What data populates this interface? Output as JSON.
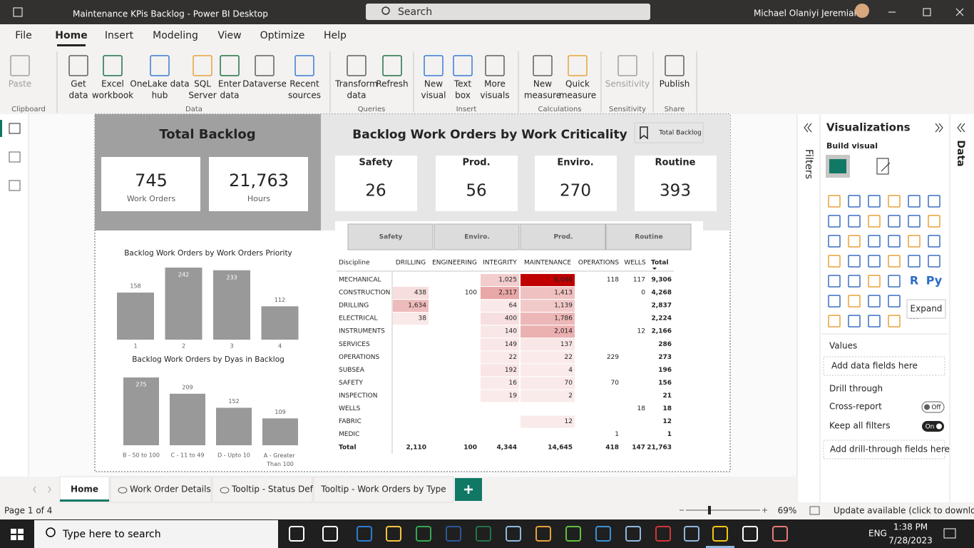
{
  "window": {
    "title": "Maintenance KPis Backlog - Power BI Desktop",
    "search": "Search",
    "user": "Michael Olaniyi Jeremiah"
  },
  "menu": [
    "File",
    "Home",
    "Insert",
    "Modeling",
    "View",
    "Optimize",
    "Help"
  ],
  "ribbon": {
    "buttons": [
      {
        "lines": [
          "Paste"
        ]
      },
      {
        "lines": [
          "Get",
          "data"
        ]
      },
      {
        "lines": [
          "Excel",
          "workbook"
        ]
      },
      {
        "lines": [
          "OneLake data",
          "hub"
        ]
      },
      {
        "lines": [
          "SQL",
          "Server"
        ]
      },
      {
        "lines": [
          "Enter",
          "data"
        ]
      },
      {
        "lines": [
          "Dataverse"
        ]
      },
      {
        "lines": [
          "Recent",
          "sources"
        ]
      },
      {
        "lines": [
          "Transform",
          "data"
        ]
      },
      {
        "lines": [
          "Refresh"
        ]
      },
      {
        "lines": [
          "New",
          "visual"
        ]
      },
      {
        "lines": [
          "Text",
          "box"
        ]
      },
      {
        "lines": [
          "More",
          "visuals"
        ]
      },
      {
        "lines": [
          "New",
          "measure"
        ]
      },
      {
        "lines": [
          "Quick",
          "measure"
        ]
      },
      {
        "lines": [
          "Sensitivity"
        ]
      },
      {
        "lines": [
          "Publish"
        ]
      }
    ],
    "groups": [
      "Clipboard",
      "Data",
      "Queries",
      "Insert",
      "Calculations",
      "Sensitivity",
      "Share"
    ]
  },
  "report": {
    "total_backlog": {
      "title": "Total Backlog",
      "cards": [
        {
          "value": "745",
          "label": "Work Orders"
        },
        {
          "value": "21,763",
          "label": "Hours"
        }
      ]
    },
    "criticality": {
      "title": "Backlog Work Orders by Work Criticality",
      "bookmark": "Total Backlog",
      "cards": [
        {
          "label": "Safety",
          "value": 26
        },
        {
          "label": "Prod.",
          "value": 56
        },
        {
          "label": "Enviro.",
          "value": 270
        },
        {
          "label": "Routine",
          "value": 393
        }
      ]
    },
    "buttons": [
      "Safety",
      "Enviro.",
      "Prod.",
      "Routine"
    ],
    "matrix": {
      "columns": [
        "Discipline",
        "DRILLING",
        "ENGINEERING",
        "INTEGRITY",
        "MAINTENANCE",
        "OPERATIONS",
        "WELLS",
        "Total"
      ],
      "rows": [
        [
          "MECHANICAL",
          null,
          null,
          "1,025",
          "8,046",
          "118",
          "117",
          "9,306"
        ],
        [
          "CONSTRUCTION",
          "438",
          "100",
          "2,317",
          "1,413",
          null,
          "0",
          "4,268"
        ],
        [
          "DRILLING",
          "1,634",
          null,
          "64",
          "1,139",
          null,
          null,
          "2,837"
        ],
        [
          "ELECTRICAL",
          "38",
          null,
          "400",
          "1,786",
          null,
          null,
          "2,224"
        ],
        [
          "INSTRUMENTS",
          null,
          null,
          "140",
          "2,014",
          null,
          "12",
          "2,166"
        ],
        [
          "SERVICES",
          null,
          null,
          "149",
          "137",
          null,
          null,
          "286"
        ],
        [
          "OPERATIONS",
          null,
          null,
          "22",
          "22",
          "229",
          null,
          "273"
        ],
        [
          "SUBSEA",
          null,
          null,
          "192",
          "4",
          null,
          null,
          "196"
        ],
        [
          "SAFETY",
          null,
          null,
          "16",
          "70",
          "70",
          null,
          "156"
        ],
        [
          "INSPECTION",
          null,
          null,
          "19",
          "2",
          null,
          null,
          "21"
        ],
        [
          "WELLS",
          null,
          null,
          null,
          null,
          null,
          "18",
          "18"
        ],
        [
          "FABRIC",
          null,
          null,
          null,
          "12",
          null,
          null,
          "12"
        ],
        [
          "MEDIC",
          null,
          null,
          null,
          null,
          "1",
          null,
          "1"
        ]
      ],
      "total": [
        "Total",
        "2,110",
        "100",
        "4,344",
        "14,645",
        "418",
        "147",
        "21,763"
      ]
    }
  },
  "chart_data": [
    {
      "type": "bar",
      "title": "Backlog Work Orders by Work Orders Priority",
      "categories": [
        "1",
        "2",
        "3",
        "4"
      ],
      "values": [
        158,
        242,
        233,
        112
      ],
      "color": "#999999"
    },
    {
      "type": "bar",
      "title": "Backlog Work Orders by Dyas in Backlog",
      "categories": [
        "B - 50 to 100",
        "C - 11 to 49",
        "D - Upto 10",
        "A - Greater Than 100"
      ],
      "values": [
        275,
        209,
        152,
        109
      ],
      "color": "#999999"
    }
  ],
  "viz_pane": {
    "filters": "Filters",
    "title": "Visualizations",
    "build_visual": "Build visual",
    "icon_texts": [
      "R",
      "Py"
    ],
    "tooltip": "Expand",
    "values": "Values",
    "add_fields": "Add data fields here",
    "drill_through": "Drill through",
    "cross_report": "Cross-report",
    "off": "Off",
    "keep_filters": "Keep all filters",
    "on": "On",
    "add_drill": "Add drill-through fields here",
    "data": "Data"
  },
  "tabs": [
    "Home",
    "Work Order Details",
    "Tooltip - Status Def",
    "Tooltip - Work Orders by Type"
  ],
  "status": {
    "page": "Page 1 of 4",
    "zoom": "69%",
    "update": "Update available (click to download)"
  },
  "taskbar": {
    "search": "Type here to search",
    "lang": "ENG",
    "time": "1:38 PM",
    "date": "7/28/2023"
  }
}
